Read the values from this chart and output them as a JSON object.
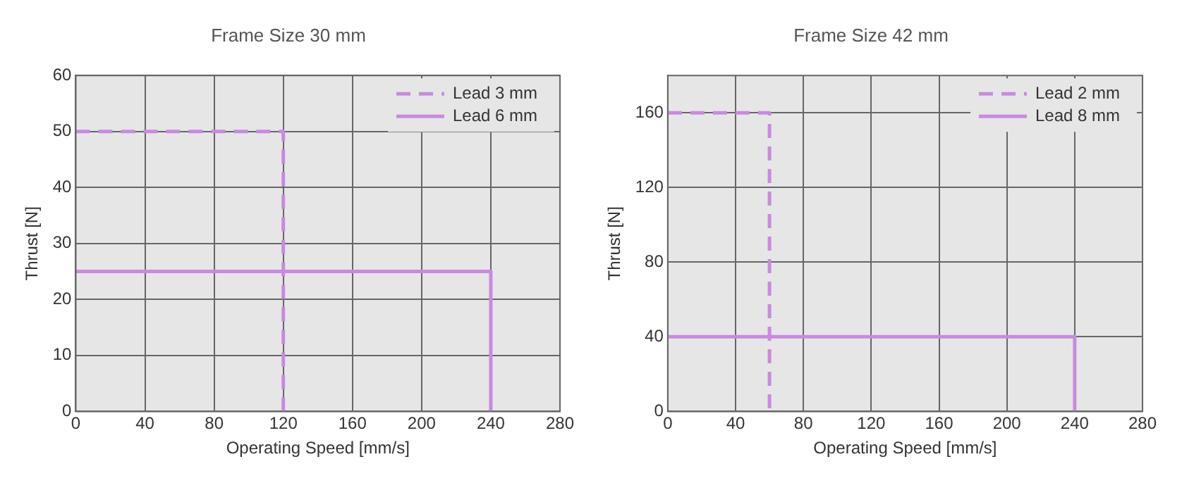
{
  "chart_data": [
    {
      "type": "line",
      "title": "Frame Size 30 mm",
      "xlabel": "Operating Speed [mm/s]",
      "ylabel": "Thrust [N]",
      "xlim": [
        0,
        280
      ],
      "xticks": [
        0,
        40,
        80,
        120,
        160,
        200,
        240,
        280
      ],
      "ylim": [
        0,
        60
      ],
      "yticks": [
        0,
        10,
        20,
        30,
        40,
        50,
        60
      ],
      "grid": true,
      "legend": "top right",
      "marker": "none",
      "series": [
        {
          "name": "Lead 3 mm",
          "color": "#c88ae0",
          "line_style": "dashed",
          "x": [
            0,
            120,
            120
          ],
          "values": [
            50,
            50,
            0
          ]
        },
        {
          "name": "Lead 6 mm",
          "color": "#c88ae0",
          "line_style": "solid",
          "x": [
            0,
            240,
            240
          ],
          "values": [
            25,
            25,
            0
          ]
        }
      ]
    },
    {
      "type": "line",
      "title": "Frame Size 42 mm",
      "xlabel": "Operating Speed [mm/s]",
      "ylabel": "Thrust [N]",
      "xlim": [
        0,
        280
      ],
      "xticks": [
        0,
        40,
        80,
        120,
        160,
        200,
        240,
        280
      ],
      "ylim": [
        0,
        180
      ],
      "yticks": [
        0,
        40,
        80,
        120,
        160
      ],
      "grid": true,
      "legend": "top right",
      "marker": "none",
      "series": [
        {
          "name": "Lead 2 mm",
          "color": "#c88ae0",
          "line_style": "dashed",
          "x": [
            0,
            60,
            60
          ],
          "values": [
            160,
            160,
            0
          ]
        },
        {
          "name": "Lead 8 mm",
          "color": "#c88ae0",
          "line_style": "solid",
          "x": [
            0,
            240,
            240
          ],
          "values": [
            40,
            40,
            0
          ]
        }
      ]
    }
  ]
}
